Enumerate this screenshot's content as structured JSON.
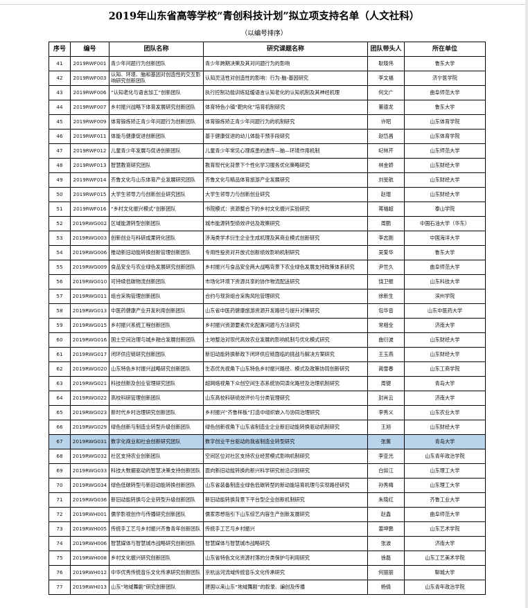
{
  "title": "2019年山东省高等学校“青创科技计划”拟立项支持名单（人文社科）",
  "subtitle": "（以编号排序）",
  "columns": [
    "序号",
    "编号",
    "团队名称",
    "研究课题名称",
    "团队带头人",
    "所在单位"
  ],
  "highlight_color": "#b9d3ea",
  "rows": [
    [
      "41",
      "2019RWF001",
      "青少年问题行为创新团队",
      "青少年跨期决策及其对问题行为的影响",
      "耿晓伟",
      "鲁东大学"
    ],
    [
      "42",
      "2019RWF003",
      "认知、环境、脑和基因对创造性的交互影响研究创新团队",
      "认知灵活性对创造性的影响：行为-脑-基因研究",
      "李文福",
      "济宁医学院"
    ],
    [
      "43",
      "2019RWF006",
      "“认知老化与语言加工”创新团队",
      "执行控制功能训练延缓语言认知老化的认知机制及其神经机理",
      "何文广",
      "曲阜师范大学"
    ],
    [
      "44",
      "2019RWF007",
      "乡村振兴战略下体育发展研究创新团队",
      "体育特色小镇“靶向化”培育机制研究",
      "董德龙",
      "鲁东大学"
    ],
    [
      "45",
      "2019RWF009",
      "体育锻炼矫正青少年问题行为创新团队",
      "体育锻炼矫正青少年问题行为的机制研究",
      "许昭",
      "山东体育学院"
    ],
    [
      "46",
      "2019RWF011",
      "体能与健康促进创新团队",
      "基于健康促进的幼儿体能干预手段研究",
      "赵岱昌",
      "山东体育学院"
    ],
    [
      "47",
      "2019RWF012",
      "儿童青少年发展与促进创新团队",
      "儿童青少年常见心理疾患的遗传—脑—环境作用机制",
      "纪林芹",
      "山东师范大学"
    ],
    [
      "48",
      "2019RWF013",
      "智慧教育研究团队",
      "教育现代化背景下个性化学习服务优化策略研究",
      "林金娇",
      "山东财经大学"
    ],
    [
      "49",
      "2019RWF014",
      "齐鲁文化与山东体育产业发展研究团队",
      "齐鲁文化与精品体育旅游产业发展研究",
      "刘旻航",
      "山东财经大学"
    ],
    [
      "50",
      "2019RWF015",
      "大学生领导力与创新创业研究团队",
      "大学生领导力与创新创业研究",
      "赵琨",
      "山东财经大学"
    ],
    [
      "51",
      "2019RWF016",
      "“乡村文化振兴模式”创新团队",
      "书院模式：资源整合下的乡村文化振兴实验研究",
      "蒋福超",
      "泰山学院"
    ],
    [
      "52",
      "2019RWG002",
      "区域能源转型创新团队",
      "城市能源转型绩效评估及政策研究",
      "周鹏",
      "中国石油大学（华东）"
    ],
    [
      "53",
      "2019RWG003",
      "创新创业与科研成果转化团队",
      "涉海类学术衍生企业生成机理及其商业模式创新研究",
      "李志刚",
      "中国海洋大学"
    ],
    [
      "54",
      "2019RWG006",
      "推动新旧动能转换创新管理创新团队",
      "专用性投资对开放式创新绩效影响机制研究",
      "吴爱华",
      "鲁东大学"
    ],
    [
      "55",
      "2019RWG009",
      "食品安全与农业绿色发展研究创新团队",
      "乡村振兴与食品安全两大战略背景下农业绿色发展支持政策体系研究",
      "尹世久",
      "曲阜师范大学"
    ],
    [
      "56",
      "2019RWG010",
      "可持续低碳物流创新团队",
      "市场化环境下资源共享的协作物流配送研究",
      "饶卫振",
      "山东科技大学"
    ],
    [
      "57",
      "2019RWG011",
      "组合采购管理创新团队",
      "合约与现货组合采购风险管理研究",
      "徐新生",
      "滨州学院"
    ],
    [
      "58",
      "2019RWG013",
      "中医药健康产业开发利用创新团队",
      "山东省中医药健康旅游资源开发路径与提升对策研究",
      "包华音",
      "山东中医药大学"
    ],
    [
      "59",
      "2019RWG015",
      "乡村振兴系统工程创新团队",
      "乡村振兴资源要素优化配置问题与方法研究",
      "常相全",
      "济南大学"
    ],
    [
      "60",
      "2019RWG016",
      "国土空间治理与城乡融合发展创新团队",
      "土地整治对现代高效农业发展的影响机制与优化模式研究",
      "曲衍波",
      "山东财经大学"
    ],
    [
      "61",
      "2019RWG017",
      "闭环供应链研究创新团队",
      "新旧动能转换新政下闭环供应链面临的挑战与解决方案研究",
      "王玉燕",
      "山东财经大学"
    ],
    [
      "62",
      "2019RWG020",
      "山东特色乡村振兴战略研究创新团队",
      "生态优先视角下山东特色乡村振兴路径、模式及政策协同创新研究",
      "蔺雪春",
      "山东工商学院"
    ],
    [
      "63",
      "2019RWG021",
      "科技创新及创业管理研究团队",
      "超网络视角下众创空间生态系统协同演化路径及治理机制研究",
      "周键",
      "青岛大学"
    ],
    [
      "64",
      "2019RWG022",
      "高校科研管理创新团队",
      "山东高校科研绩效评价与分类管理研究",
      "封肖云",
      "济南大学"
    ],
    [
      "65",
      "2019RWG023",
      "新时代乡村治理研究创新团队",
      "乡村振兴“齐鲁样板”打造中组织嵌入与协同治理研究",
      "李秀义",
      "山东农业大学"
    ],
    [
      "66",
      "2019RWG029",
      "绿色创新与制造业转型升级创新团队",
      "绿色创新视角下山东省制造业企业新旧动能转换驱动机制研究",
      "王旭",
      "山东财经大学"
    ],
    [
      "67",
      "2019RWG031",
      "数字化商业和社会创新研究团队",
      "数字创业平台驱动的我省制造业转型研究",
      "张薰",
      "青岛大学"
    ],
    [
      "68",
      "2019RWG032",
      "社区支持农业创新团队",
      "空间区位对社区支持农业经营模式影响机制研究",
      "李亚光",
      "山东青年政治学院"
    ],
    [
      "69",
      "2019RWG033",
      "科技大数据驱动的智慧决策支持创新团队",
      "面向新旧动能转换的新兴科学研究前沿识别研究",
      "白如江",
      "山东理工大学"
    ],
    [
      "70",
      "2019RWG034",
      "绿色低碳转型与新旧动能转换创新团队",
      "山东省装备制造业绿色低碳转型的新动能培育机理与实现路径研究",
      "孙秀梅",
      "山东理工大学"
    ],
    [
      "71",
      "2019RWG036",
      "新旧动能转换与企业转型升级创新团队",
      "新旧动能转换背景下平台型企业创新机制研究",
      "朱晓红",
      "齐鲁工业大学"
    ],
    [
      "72",
      "2019RWH001",
      "儒学影视创作与传播研究创新团队",
      "儒家思想指引下山东综艺内容生产创新发展研究",
      "赵鑫",
      "曲阜师范大学"
    ],
    [
      "73",
      "2019RWH005",
      "传统手工艺与乡村振兴齐鲁青年创新团队",
      "传统手工艺与乡村振兴",
      "姜坤鹏",
      "山东艺术学院"
    ],
    [
      "74",
      "2019RWH006",
      "智慧媒体与智慧城市战略研究创新团队",
      "智慧媒体与智慧城市战略研究",
      "张波",
      "济南大学"
    ],
    [
      "75",
      "2019RWH008",
      "乡村文化振兴研究创新团队",
      "山东省特色文化资源村落的分类保护与利用研究",
      "徐磊",
      "山东工艺美术学院"
    ],
    [
      "76",
      "2019RWH012",
      "中华优秀传统音乐文化传承研究创新团队",
      "京杭运河流域传统音乐文化传承研究",
      "何丽丽",
      "聊城大学"
    ],
    [
      "77",
      "2019RWH013",
      "山东“地域舞剧”研究创新团队",
      "建国以来山东“地域舞剧”的叙录、编创及传播",
      "杨倩",
      "山东青年政治学院"
    ]
  ],
  "selected_row": "67"
}
